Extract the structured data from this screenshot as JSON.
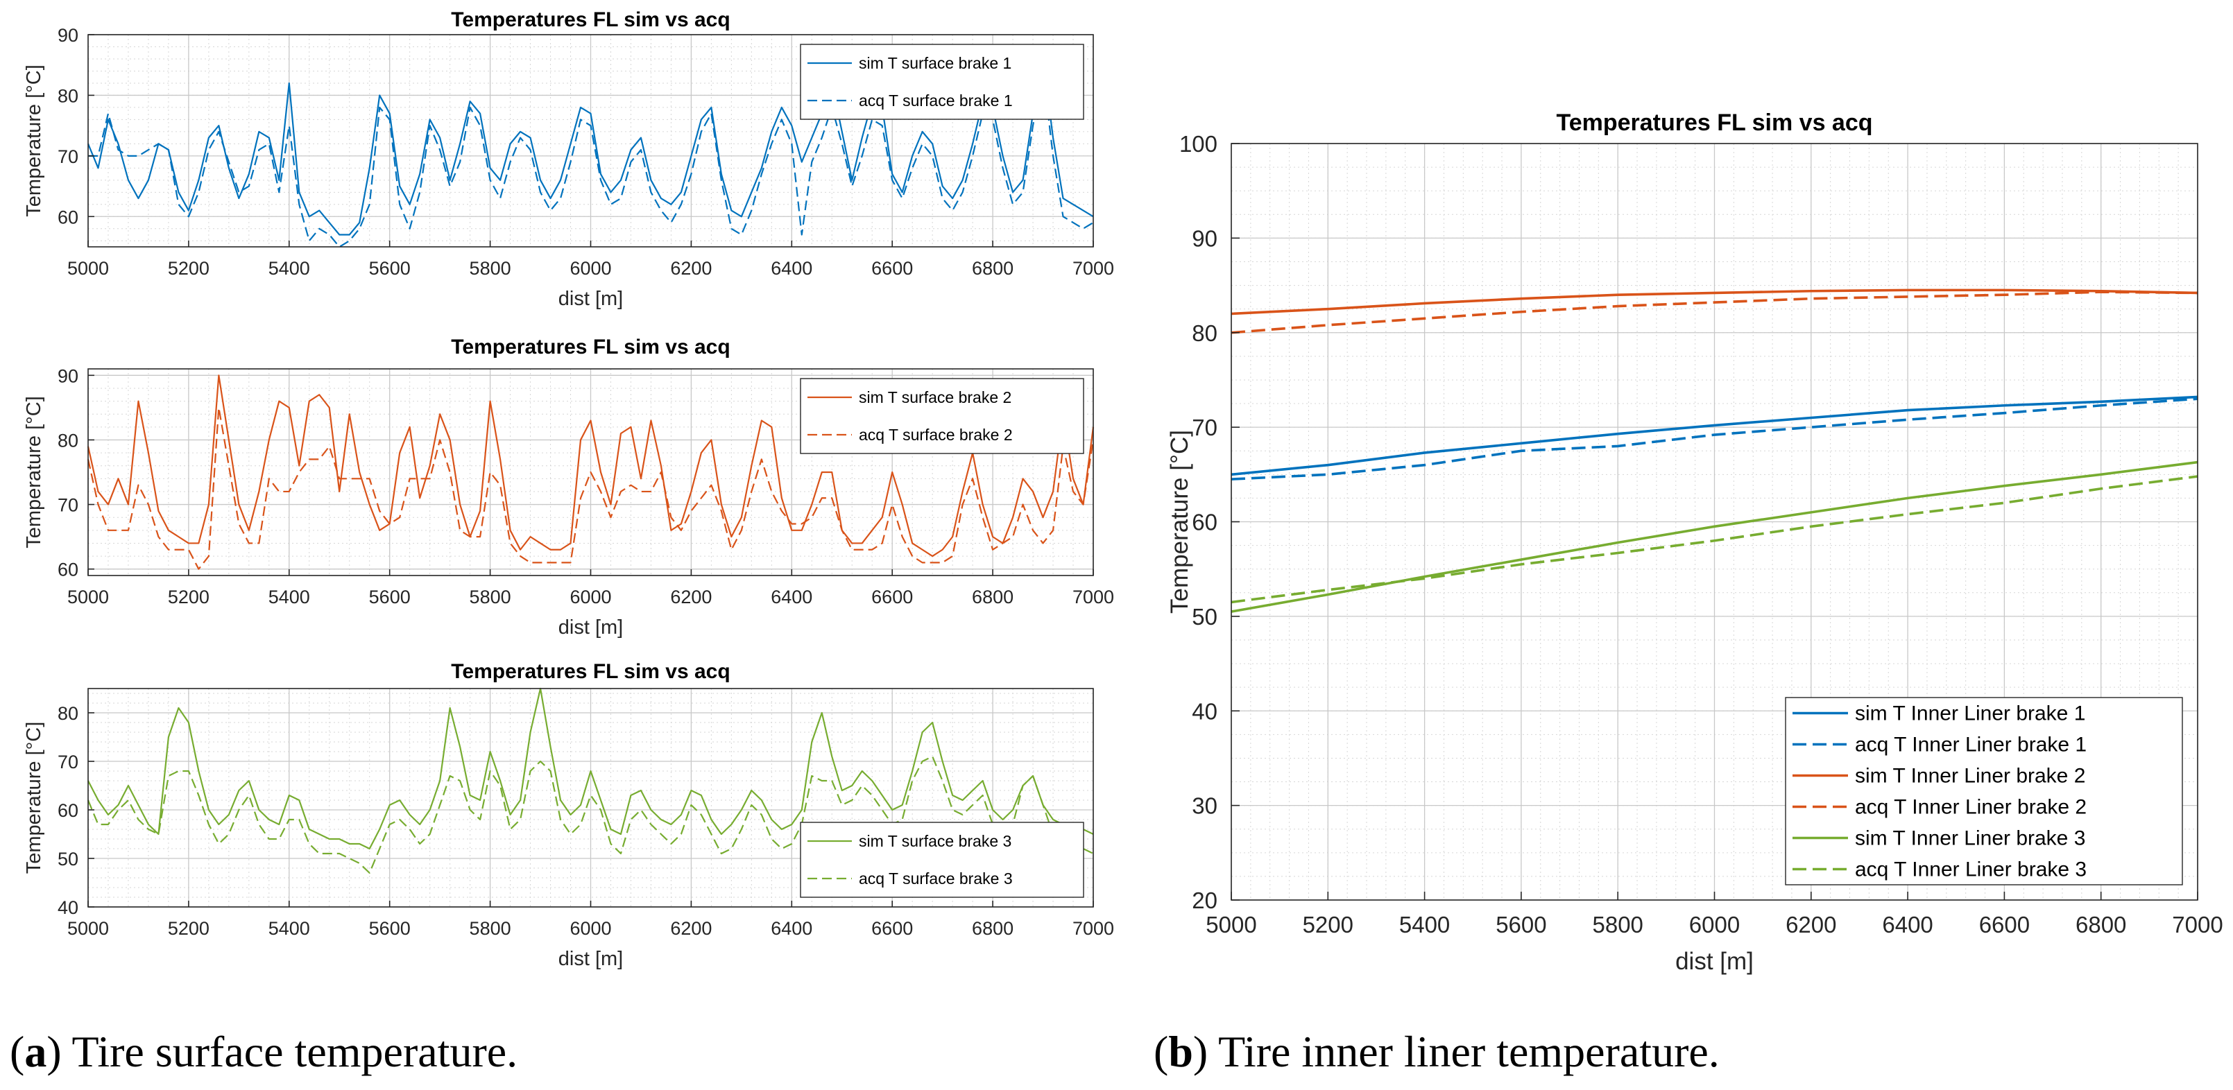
{
  "colors": {
    "series1": "#0072BD",
    "series2": "#D95319",
    "series3": "#77AC30"
  },
  "captions": [
    {
      "letter": "a",
      "text": " Tire surface temperature."
    },
    {
      "letter": "b",
      "text": " Tire inner liner temperature."
    }
  ],
  "chart_data": [
    {
      "type": "line",
      "title": "Temperatures FL sim vs acq",
      "xlabel": "dist [m]",
      "ylabel": "Temperature [°C]",
      "xlim": [
        5000,
        7000
      ],
      "ylim": [
        55,
        90
      ],
      "xticks": [
        5000,
        5200,
        5400,
        5600,
        5800,
        6000,
        6200,
        6400,
        6600,
        6800,
        7000
      ],
      "yticks": [
        60,
        70,
        80,
        90
      ],
      "grid": true,
      "legend_position": "top-right",
      "color": "#0072BD",
      "x": [
        5000,
        5020,
        5040,
        5060,
        5080,
        5100,
        5120,
        5140,
        5160,
        5180,
        5200,
        5220,
        5240,
        5260,
        5280,
        5300,
        5320,
        5340,
        5360,
        5380,
        5400,
        5420,
        5440,
        5460,
        5480,
        5500,
        5520,
        5540,
        5560,
        5580,
        5600,
        5620,
        5640,
        5660,
        5680,
        5700,
        5720,
        5740,
        5760,
        5780,
        5800,
        5820,
        5840,
        5860,
        5880,
        5900,
        5920,
        5940,
        5960,
        5980,
        6000,
        6020,
        6040,
        6060,
        6080,
        6100,
        6120,
        6140,
        6160,
        6180,
        6200,
        6220,
        6240,
        6260,
        6280,
        6300,
        6320,
        6340,
        6360,
        6380,
        6400,
        6420,
        6440,
        6460,
        6480,
        6500,
        6520,
        6540,
        6560,
        6580,
        6600,
        6620,
        6640,
        6660,
        6680,
        6700,
        6720,
        6740,
        6760,
        6780,
        6800,
        6820,
        6840,
        6860,
        6880,
        6900,
        6920,
        6940,
        6960,
        6980,
        7000
      ],
      "series": [
        {
          "name": "sim T surface brake 1",
          "style": "solid",
          "values": [
            72,
            68,
            76,
            72,
            66,
            63,
            66,
            72,
            71,
            64,
            61,
            66,
            73,
            75,
            68,
            63,
            67,
            74,
            73,
            66,
            82,
            64,
            60,
            61,
            59,
            57,
            57,
            59,
            68,
            80,
            77,
            65,
            62,
            67,
            76,
            73,
            66,
            72,
            79,
            77,
            68,
            66,
            72,
            74,
            73,
            66,
            63,
            66,
            72,
            78,
            77,
            67,
            64,
            66,
            71,
            73,
            66,
            63,
            62,
            64,
            70,
            76,
            78,
            67,
            61,
            60,
            64,
            68,
            74,
            78,
            75,
            69,
            73,
            77,
            82,
            74,
            66,
            73,
            79,
            78,
            67,
            64,
            70,
            74,
            72,
            65,
            63,
            66,
            72,
            79,
            78,
            70,
            64,
            66,
            77,
            86,
            73,
            63,
            62,
            61,
            60
          ]
        },
        {
          "name": "acq T surface  brake 1",
          "style": "dashed",
          "values": [
            70,
            70,
            77,
            71,
            70,
            70,
            71,
            72,
            71,
            62,
            60,
            64,
            71,
            74,
            69,
            64,
            65,
            71,
            72,
            64,
            75,
            62,
            56,
            58,
            57,
            55,
            56,
            58,
            62,
            78,
            76,
            62,
            58,
            64,
            75,
            71,
            65,
            69,
            78,
            75,
            66,
            63,
            69,
            73,
            71,
            64,
            61,
            63,
            69,
            76,
            75,
            66,
            62,
            63,
            69,
            71,
            64,
            61,
            59,
            62,
            67,
            74,
            77,
            66,
            58,
            57,
            61,
            67,
            72,
            76,
            72,
            57,
            69,
            73,
            78,
            72,
            65,
            70,
            76,
            75,
            66,
            63,
            68,
            72,
            70,
            63,
            61,
            64,
            70,
            77,
            76,
            68,
            62,
            64,
            75,
            84,
            70,
            60,
            59,
            58,
            59
          ]
        }
      ]
    },
    {
      "type": "line",
      "title": "Temperatures FL sim vs acq",
      "xlabel": "dist [m]",
      "ylabel": "Temperature [°C]",
      "xlim": [
        5000,
        7000
      ],
      "ylim": [
        59,
        91
      ],
      "xticks": [
        5000,
        5200,
        5400,
        5600,
        5800,
        6000,
        6200,
        6400,
        6600,
        6800,
        7000
      ],
      "yticks": [
        60,
        70,
        80,
        90
      ],
      "grid": true,
      "legend_position": "top-right",
      "color": "#D95319",
      "x": [
        5000,
        5020,
        5040,
        5060,
        5080,
        5100,
        5120,
        5140,
        5160,
        5180,
        5200,
        5220,
        5240,
        5260,
        5280,
        5300,
        5320,
        5340,
        5360,
        5380,
        5400,
        5420,
        5440,
        5460,
        5480,
        5500,
        5520,
        5540,
        5560,
        5580,
        5600,
        5620,
        5640,
        5660,
        5680,
        5700,
        5720,
        5740,
        5760,
        5780,
        5800,
        5820,
        5840,
        5860,
        5880,
        5900,
        5920,
        5940,
        5960,
        5980,
        6000,
        6020,
        6040,
        6060,
        6080,
        6100,
        6120,
        6140,
        6160,
        6180,
        6200,
        6220,
        6240,
        6260,
        6280,
        6300,
        6320,
        6340,
        6360,
        6380,
        6400,
        6420,
        6440,
        6460,
        6480,
        6500,
        6520,
        6540,
        6560,
        6580,
        6600,
        6620,
        6640,
        6660,
        6680,
        6700,
        6720,
        6740,
        6760,
        6780,
        6800,
        6820,
        6840,
        6860,
        6880,
        6900,
        6920,
        6940,
        6960,
        6980,
        7000
      ],
      "series": [
        {
          "name": "sim T surface brake 2",
          "style": "solid",
          "values": [
            79,
            72,
            70,
            74,
            70,
            86,
            78,
            69,
            66,
            65,
            64,
            64,
            70,
            90,
            80,
            70,
            66,
            72,
            80,
            86,
            85,
            76,
            86,
            87,
            85,
            72,
            84,
            75,
            70,
            66,
            67,
            78,
            82,
            71,
            76,
            84,
            80,
            70,
            65,
            69,
            86,
            77,
            66,
            63,
            65,
            64,
            63,
            63,
            64,
            80,
            83,
            75,
            70,
            81,
            82,
            74,
            83,
            76,
            66,
            67,
            72,
            78,
            80,
            70,
            65,
            68,
            76,
            83,
            82,
            71,
            66,
            66,
            70,
            75,
            75,
            66,
            64,
            64,
            66,
            68,
            75,
            70,
            64,
            63,
            62,
            63,
            65,
            72,
            78,
            70,
            65,
            64,
            68,
            74,
            72,
            68,
            72,
            84,
            74,
            70,
            82
          ]
        },
        {
          "name": "acq T surface brake 2",
          "style": "dashed",
          "values": [
            77,
            70,
            66,
            66,
            66,
            73,
            70,
            65,
            63,
            63,
            63,
            60,
            62,
            85,
            76,
            67,
            64,
            64,
            74,
            72,
            72,
            75,
            77,
            77,
            79,
            74,
            74,
            74,
            74,
            69,
            67,
            68,
            74,
            74,
            74,
            80,
            75,
            66,
            65,
            65,
            75,
            73,
            64,
            62,
            61,
            61,
            61,
            61,
            61,
            71,
            75,
            72,
            68,
            72,
            73,
            72,
            72,
            75,
            68,
            66,
            69,
            71,
            73,
            69,
            63,
            66,
            72,
            77,
            72,
            69,
            67,
            67,
            68,
            71,
            71,
            66,
            63,
            63,
            63,
            64,
            70,
            65,
            62,
            61,
            61,
            61,
            62,
            70,
            74,
            68,
            63,
            64,
            65,
            70,
            66,
            64,
            66,
            79,
            72,
            70,
            80
          ]
        }
      ]
    },
    {
      "type": "line",
      "title": "Temperatures FL sim vs acq",
      "xlabel": "dist [m]",
      "ylabel": "Temperature [°C]",
      "xlim": [
        5000,
        7000
      ],
      "ylim": [
        40,
        85
      ],
      "xticks": [
        5000,
        5200,
        5400,
        5600,
        5800,
        6000,
        6200,
        6400,
        6600,
        6800,
        7000
      ],
      "yticks": [
        40,
        50,
        60,
        70,
        80
      ],
      "grid": true,
      "legend_position": "bottom-right",
      "color": "#77AC30",
      "x": [
        5000,
        5020,
        5040,
        5060,
        5080,
        5100,
        5120,
        5140,
        5160,
        5180,
        5200,
        5220,
        5240,
        5260,
        5280,
        5300,
        5320,
        5340,
        5360,
        5380,
        5400,
        5420,
        5440,
        5460,
        5480,
        5500,
        5520,
        5540,
        5560,
        5580,
        5600,
        5620,
        5640,
        5660,
        5680,
        5700,
        5720,
        5740,
        5760,
        5780,
        5800,
        5820,
        5840,
        5860,
        5880,
        5900,
        5920,
        5940,
        5960,
        5980,
        6000,
        6020,
        6040,
        6060,
        6080,
        6100,
        6120,
        6140,
        6160,
        6180,
        6200,
        6220,
        6240,
        6260,
        6280,
        6300,
        6320,
        6340,
        6360,
        6380,
        6400,
        6420,
        6440,
        6460,
        6480,
        6500,
        6520,
        6540,
        6560,
        6580,
        6600,
        6620,
        6640,
        6660,
        6680,
        6700,
        6720,
        6740,
        6760,
        6780,
        6800,
        6820,
        6840,
        6860,
        6880,
        6900,
        6920,
        6940,
        6960,
        6980,
        7000
      ],
      "series": [
        {
          "name": "sim T surface brake 3",
          "style": "solid",
          "values": [
            66,
            62,
            59,
            61,
            65,
            61,
            57,
            55,
            75,
            81,
            78,
            68,
            60,
            57,
            59,
            64,
            66,
            60,
            58,
            57,
            63,
            62,
            56,
            55,
            54,
            54,
            53,
            53,
            52,
            56,
            61,
            62,
            59,
            57,
            60,
            66,
            81,
            73,
            63,
            62,
            72,
            66,
            59,
            62,
            76,
            85,
            73,
            62,
            59,
            61,
            68,
            62,
            56,
            55,
            63,
            64,
            60,
            58,
            57,
            59,
            64,
            63,
            58,
            55,
            57,
            60,
            64,
            62,
            58,
            56,
            57,
            60,
            74,
            80,
            71,
            64,
            65,
            68,
            66,
            63,
            60,
            61,
            68,
            76,
            78,
            70,
            63,
            62,
            64,
            66,
            60,
            58,
            60,
            65,
            67,
            61,
            58,
            57,
            56,
            56,
            55
          ]
        },
        {
          "name": "acq T surface brake 3",
          "style": "dashed",
          "values": [
            62,
            57,
            57,
            60,
            62,
            58,
            56,
            55,
            67,
            68,
            68,
            63,
            57,
            53,
            55,
            60,
            63,
            57,
            54,
            54,
            58,
            58,
            53,
            51,
            51,
            51,
            50,
            49,
            47,
            52,
            57,
            58,
            56,
            53,
            55,
            61,
            67,
            66,
            60,
            58,
            68,
            65,
            56,
            58,
            68,
            70,
            68,
            58,
            55,
            57,
            63,
            60,
            53,
            51,
            58,
            60,
            57,
            55,
            53,
            55,
            61,
            59,
            55,
            51,
            52,
            56,
            61,
            59,
            54,
            52,
            53,
            57,
            67,
            66,
            66,
            61,
            62,
            65,
            63,
            60,
            57,
            58,
            66,
            70,
            71,
            66,
            60,
            59,
            61,
            63,
            57,
            55,
            57,
            65,
            67,
            61,
            55,
            53,
            52,
            52,
            51
          ]
        }
      ]
    },
    {
      "type": "line",
      "title": "Temperatures FL sim vs acq",
      "xlabel": "dist [m]",
      "ylabel": "Temperature [°C]",
      "xlim": [
        5000,
        7000
      ],
      "ylim": [
        20,
        100
      ],
      "xticks": [
        5000,
        5200,
        5400,
        5600,
        5800,
        6000,
        6200,
        6400,
        6600,
        6800,
        7000
      ],
      "yticks": [
        20,
        30,
        40,
        50,
        60,
        70,
        80,
        90,
        100
      ],
      "grid": true,
      "legend_position": "bottom-right",
      "x": [
        5000,
        5200,
        5400,
        5600,
        5800,
        6000,
        6200,
        6400,
        6600,
        6800,
        7000
      ],
      "series": [
        {
          "name": "sim T Inner Liner brake 1",
          "style": "solid",
          "color": "#0072BD",
          "values": [
            65,
            66,
            67.3,
            68.3,
            69.3,
            70.2,
            71,
            71.8,
            72.3,
            72.7,
            73.2
          ]
        },
        {
          "name": "acq T Inner Liner brake 1",
          "style": "dashed",
          "color": "#0072BD",
          "values": [
            64.5,
            65,
            66,
            67.5,
            68,
            69.2,
            70,
            70.8,
            71.5,
            72.3,
            73
          ]
        },
        {
          "name": "sim T Inner Liner brake 2",
          "style": "solid",
          "color": "#D95319",
          "values": [
            82,
            82.5,
            83.1,
            83.6,
            84,
            84.2,
            84.4,
            84.5,
            84.5,
            84.4,
            84.2
          ]
        },
        {
          "name": "acq T Inner Liner brake 2",
          "style": "dashed",
          "color": "#D95319",
          "values": [
            80,
            80.8,
            81.5,
            82.2,
            82.8,
            83.2,
            83.6,
            83.8,
            84,
            84.3,
            84.2
          ]
        },
        {
          "name": "sim T Inner Liner brake 3",
          "style": "solid",
          "color": "#77AC30",
          "values": [
            50.5,
            52.3,
            54.2,
            56,
            57.8,
            59.5,
            61,
            62.5,
            63.8,
            65,
            66.3
          ]
        },
        {
          "name": "acq T Inner Liner brake 3",
          "style": "dashed",
          "color": "#77AC30",
          "values": [
            51.5,
            52.8,
            54,
            55.5,
            56.7,
            58,
            59.5,
            60.8,
            62,
            63.5,
            64.8
          ]
        }
      ]
    }
  ]
}
